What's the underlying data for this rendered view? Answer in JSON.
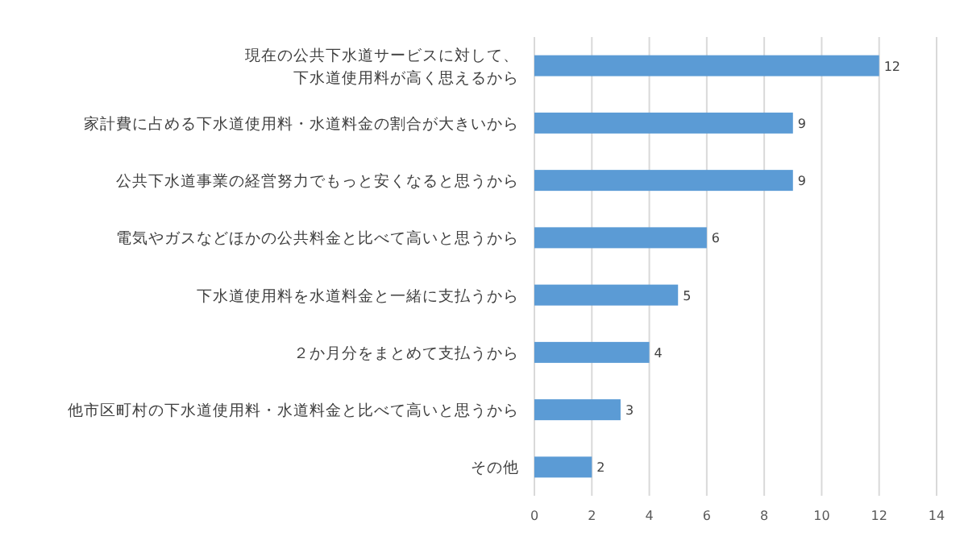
{
  "chart_data": {
    "type": "bar",
    "orientation": "horizontal",
    "categories": [
      "現在の公共下水道サービスに対して、下水道使用料が高く思えるから",
      "家計費に占める下水道使用料・水道料金の割合が大きいから",
      "公共下水道事業の経営努力でもっと安くなると思うから",
      "電気やガスなどほかの公共料金と比べて高いと思うから",
      "下水道使用料を水道料金と一緒に支払うから",
      "２か月分をまとめて支払うから",
      "他市区町村の下水道使用料・水道料金と比べて高いと思うから",
      "その他"
    ],
    "values": [
      12,
      9,
      9,
      6,
      5,
      4,
      3,
      2
    ],
    "color": "#5b9bd5",
    "xlim": [
      0,
      14
    ],
    "xticks": [
      0,
      2,
      4,
      6,
      8,
      10,
      12,
      14
    ],
    "grid": "x",
    "data_labels": true
  }
}
